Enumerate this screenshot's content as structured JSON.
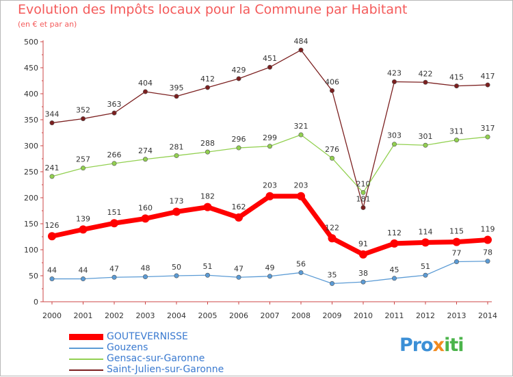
{
  "title": "Evolution des Impôts locaux pour la Commune par Habitant",
  "subtitle": "(en € et par an)",
  "logo": "Proxiti",
  "chart_data": {
    "type": "line",
    "title": "Evolution des Impôts locaux pour la Commune par Habitant",
    "subtitle": "(en € et par an)",
    "xlabel": "",
    "ylabel": "",
    "ylim": [
      0,
      500
    ],
    "yticks": [
      0,
      50,
      100,
      150,
      200,
      250,
      300,
      350,
      400,
      450,
      500
    ],
    "grid": false,
    "legend_position": "bottom",
    "x": [
      "2000",
      "2001",
      "2002",
      "2003",
      "2004",
      "2005",
      "2006",
      "2007",
      "2008",
      "2009",
      "2010",
      "2011",
      "2012",
      "2013",
      "2014"
    ],
    "series": [
      {
        "name": "GOUTEVERNISSE",
        "color": "#ff0000",
        "values": [
          126,
          139,
          151,
          160,
          173,
          182,
          162,
          203,
          203,
          122,
          91,
          112,
          114,
          115,
          119
        ]
      },
      {
        "name": "Gouzens",
        "color": "#5b9bd5",
        "values": [
          44,
          44,
          47,
          48,
          50,
          51,
          47,
          49,
          56,
          35,
          38,
          45,
          51,
          77,
          78
        ]
      },
      {
        "name": "Gensac-sur-Garonne",
        "color": "#92d050",
        "values": [
          241,
          257,
          266,
          274,
          281,
          288,
          296,
          299,
          321,
          276,
          210,
          303,
          301,
          311,
          317
        ]
      },
      {
        "name": "Saint-Julien-sur-Garonne",
        "color": "#7b1f1f",
        "values": [
          344,
          352,
          363,
          404,
          395,
          412,
          429,
          451,
          484,
          406,
          181,
          423,
          422,
          415,
          417
        ]
      }
    ]
  }
}
